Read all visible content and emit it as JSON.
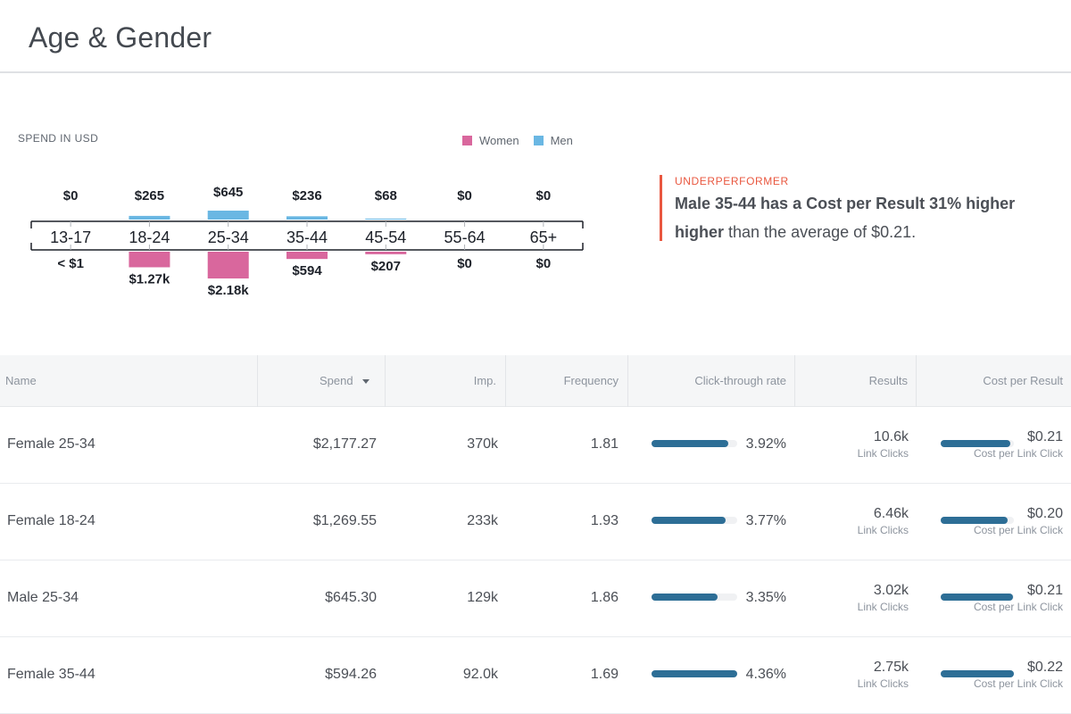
{
  "page": {
    "title": "Age & Gender"
  },
  "chart_data": {
    "type": "bar",
    "title": "SPEND IN USD",
    "categories": [
      "13-17",
      "18-24",
      "25-34",
      "35-44",
      "45-54",
      "55-64",
      "65+"
    ],
    "series": [
      {
        "name": "Men",
        "values": [
          0,
          265,
          645,
          236,
          68,
          0,
          0
        ],
        "labels": [
          "$0",
          "$265",
          "$645",
          "$236",
          "$68",
          "$0",
          "$0"
        ],
        "color": "#6ab7e3"
      },
      {
        "name": "Women",
        "values": [
          0.5,
          1270,
          2180,
          594,
          207,
          0,
          0
        ],
        "labels": [
          "< $1",
          "$1.27k",
          "$2.18k",
          "$594",
          "$207",
          "$0",
          "$0"
        ],
        "color": "#d9679d"
      }
    ],
    "legend": [
      "Women",
      "Men"
    ],
    "legend_position": "top-right"
  },
  "insight": {
    "tag": "UNDERPERFORMER",
    "text_bold": "Male 35-44 has a Cost per Result 31% higher",
    "text_bold2": "higher",
    "text_rest": " than the average of $0.21.",
    "accent": "#e9573f"
  },
  "table": {
    "headers": {
      "name": "Name",
      "spend": "Spend",
      "imp": "Imp.",
      "frequency": "Frequency",
      "ctr": "Click-through rate",
      "results": "Results",
      "cpr": "Cost per Result"
    },
    "rows": [
      {
        "name": "Female 25-34",
        "spend": "$2,177.27",
        "imp": "370k",
        "frequency": "1.81",
        "ctr": "3.92%",
        "ctr_fill": 0.9,
        "results": "10.6k",
        "results_sub": "Link Clicks",
        "cpr": "$0.21",
        "cpr_fill": 0.95,
        "cpr_sub": "Cost per Link Click"
      },
      {
        "name": "Female 18-24",
        "spend": "$1,269.55",
        "imp": "233k",
        "frequency": "1.93",
        "ctr": "3.77%",
        "ctr_fill": 0.86,
        "results": "6.46k",
        "results_sub": "Link Clicks",
        "cpr": "$0.20",
        "cpr_fill": 0.91,
        "cpr_sub": "Cost per Link Click"
      },
      {
        "name": "Male 25-34",
        "spend": "$645.30",
        "imp": "129k",
        "frequency": "1.86",
        "ctr": "3.35%",
        "ctr_fill": 0.77,
        "results": "3.02k",
        "results_sub": "Link Clicks",
        "cpr": "$0.21",
        "cpr_fill": 0.99,
        "cpr_sub": "Cost per Link Click"
      },
      {
        "name": "Female 35-44",
        "spend": "$594.26",
        "imp": "92.0k",
        "frequency": "1.69",
        "ctr": "4.36%",
        "ctr_fill": 1.0,
        "results": "2.75k",
        "results_sub": "Link Clicks",
        "cpr": "$0.22",
        "cpr_fill": 1.0,
        "cpr_sub": "Cost per Link Click"
      }
    ],
    "colors": {
      "bar": "#2d6e96",
      "track": "#f0f1f3"
    }
  }
}
